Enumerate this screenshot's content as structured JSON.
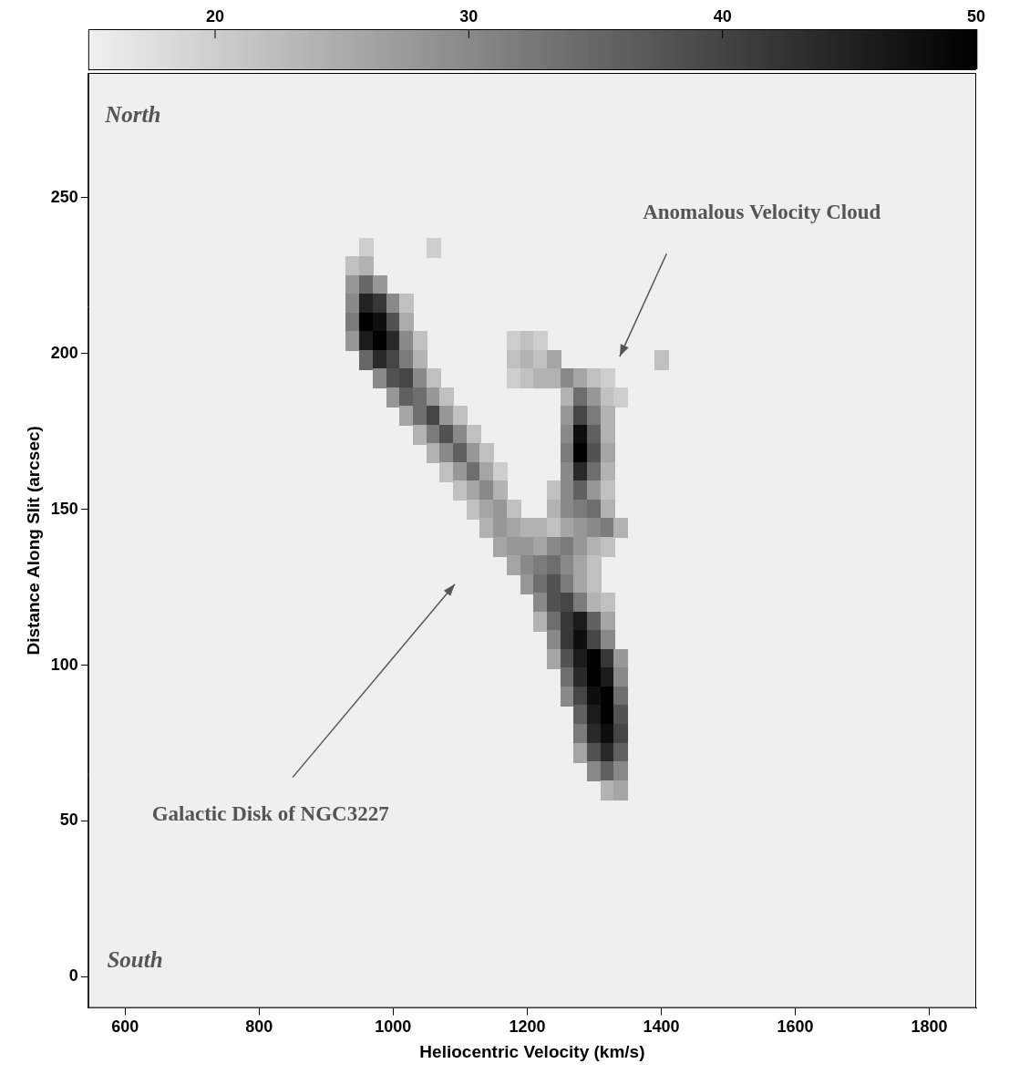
{
  "chart_data": {
    "type": "heatmap",
    "x_label": "Heliocentric Velocity (km/s)",
    "y_label": "Distance Along Slit (arcsec)",
    "xlim": [
      545,
      1870
    ],
    "ylim": [
      -10,
      290
    ],
    "xticks": [
      600,
      800,
      1000,
      1200,
      1400,
      1600,
      1800
    ],
    "yticks": [
      0,
      50,
      100,
      150,
      200,
      250
    ],
    "grid": false,
    "annotations": [
      "North",
      "South",
      "Anomalous Velocity Cloud",
      "Galactic Disk of NGC3227"
    ],
    "colorbar": {
      "range": [
        15,
        50
      ],
      "ticks": [
        20,
        30,
        40,
        50
      ]
    },
    "cells": {
      "x_step": 20,
      "y_step": 6,
      "rows": [
        {
          "y": 234,
          "x_start": 960,
          "values": [
            20
          ]
        },
        {
          "y": 234,
          "x_start": 1060,
          "values": [
            20
          ]
        },
        {
          "y": 228,
          "x_start": 940,
          "values": [
            22,
            24
          ]
        },
        {
          "y": 222,
          "x_start": 940,
          "values": [
            28,
            35,
            28
          ]
        },
        {
          "y": 216,
          "x_start": 940,
          "values": [
            30,
            45,
            42,
            30,
            22
          ]
        },
        {
          "y": 210,
          "x_start": 940,
          "values": [
            32,
            50,
            48,
            38,
            25
          ]
        },
        {
          "y": 204,
          "x_start": 940,
          "values": [
            28,
            46,
            50,
            44,
            30,
            22
          ]
        },
        {
          "y": 204,
          "x_start": 1180,
          "values": [
            20,
            22,
            20
          ]
        },
        {
          "y": 198,
          "x_start": 960,
          "values": [
            35,
            44,
            40,
            32,
            24
          ]
        },
        {
          "y": 198,
          "x_start": 1180,
          "values": [
            22,
            24,
            22,
            26
          ]
        },
        {
          "y": 198,
          "x_start": 1400,
          "values": [
            22
          ]
        },
        {
          "y": 192,
          "x_start": 980,
          "values": [
            30,
            38,
            40,
            30,
            22
          ]
        },
        {
          "y": 192,
          "x_start": 1180,
          "values": [
            20,
            22,
            24,
            24,
            30,
            26,
            22,
            20
          ]
        },
        {
          "y": 186,
          "x_start": 1000,
          "values": [
            28,
            36,
            34,
            28,
            22
          ]
        },
        {
          "y": 186,
          "x_start": 1260,
          "values": [
            24,
            34,
            28,
            22,
            20
          ]
        },
        {
          "y": 180,
          "x_start": 1020,
          "values": [
            26,
            34,
            40,
            28,
            22
          ]
        },
        {
          "y": 180,
          "x_start": 1260,
          "values": [
            28,
            40,
            32,
            24
          ]
        },
        {
          "y": 174,
          "x_start": 1040,
          "values": [
            24,
            32,
            38,
            30,
            22
          ]
        },
        {
          "y": 174,
          "x_start": 1260,
          "values": [
            30,
            48,
            36,
            24
          ]
        },
        {
          "y": 168,
          "x_start": 1060,
          "values": [
            24,
            30,
            36,
            28,
            22
          ]
        },
        {
          "y": 168,
          "x_start": 1260,
          "values": [
            32,
            50,
            38,
            26
          ]
        },
        {
          "y": 162,
          "x_start": 1080,
          "values": [
            22,
            28,
            34,
            26,
            20
          ]
        },
        {
          "y": 162,
          "x_start": 1260,
          "values": [
            30,
            44,
            34,
            24
          ]
        },
        {
          "y": 156,
          "x_start": 1100,
          "values": [
            22,
            26,
            30,
            24
          ]
        },
        {
          "y": 156,
          "x_start": 1240,
          "values": [
            22,
            30,
            36,
            28,
            22
          ]
        },
        {
          "y": 150,
          "x_start": 1120,
          "values": [
            22,
            26,
            28,
            22
          ]
        },
        {
          "y": 150,
          "x_start": 1240,
          "values": [
            24,
            30,
            32,
            34,
            24
          ]
        },
        {
          "y": 144,
          "x_start": 1140,
          "values": [
            24,
            28,
            26,
            24,
            24,
            22,
            26,
            28,
            30,
            32,
            24
          ]
        },
        {
          "y": 138,
          "x_start": 1160,
          "values": [
            26,
            28,
            28,
            26,
            30,
            32,
            28,
            24,
            22
          ]
        },
        {
          "y": 132,
          "x_start": 1180,
          "values": [
            26,
            30,
            32,
            34,
            30,
            26,
            22
          ]
        },
        {
          "y": 126,
          "x_start": 1200,
          "values": [
            28,
            34,
            38,
            32,
            26,
            22
          ]
        },
        {
          "y": 120,
          "x_start": 1220,
          "values": [
            30,
            38,
            40,
            32,
            24,
            22
          ]
        },
        {
          "y": 114,
          "x_start": 1220,
          "values": [
            24,
            34,
            42,
            46,
            36,
            26
          ]
        },
        {
          "y": 108,
          "x_start": 1240,
          "values": [
            30,
            42,
            48,
            40,
            30
          ]
        },
        {
          "y": 102,
          "x_start": 1240,
          "values": [
            26,
            38,
            46,
            50,
            42,
            28
          ]
        },
        {
          "y": 96,
          "x_start": 1260,
          "values": [
            34,
            44,
            50,
            46,
            30
          ]
        },
        {
          "y": 90,
          "x_start": 1260,
          "values": [
            30,
            40,
            48,
            50,
            34
          ]
        },
        {
          "y": 84,
          "x_start": 1280,
          "values": [
            36,
            46,
            50,
            38
          ]
        },
        {
          "y": 78,
          "x_start": 1280,
          "values": [
            32,
            44,
            48,
            40
          ]
        },
        {
          "y": 72,
          "x_start": 1280,
          "values": [
            26,
            38,
            44,
            36
          ]
        },
        {
          "y": 66,
          "x_start": 1300,
          "values": [
            30,
            36,
            30
          ]
        },
        {
          "y": 60,
          "x_start": 1320,
          "values": [
            24,
            26
          ]
        }
      ]
    }
  }
}
